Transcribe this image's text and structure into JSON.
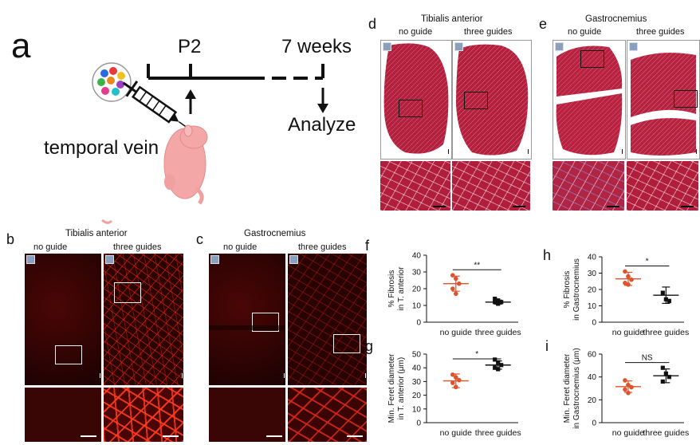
{
  "panel_a": {
    "letter": "a",
    "p2": "P2",
    "weeks": "7 weeks",
    "analyze": "Analyze",
    "temporal_vein": "temporal vein"
  },
  "panel_b": {
    "letter": "b",
    "title": "Tibialis anterior",
    "col1": "no guide",
    "col2": "three guides"
  },
  "panel_c": {
    "letter": "c",
    "title": "Gastrocnemius",
    "col1": "no guide",
    "col2": "three guides"
  },
  "panel_d": {
    "letter": "d",
    "title": "Tibialis anterior",
    "col1": "no guide",
    "col2": "three guides"
  },
  "panel_e": {
    "letter": "e",
    "title": "Gastrocnemius",
    "col1": "no guide",
    "col2": "three guides"
  },
  "colors": {
    "no_guide": "#e0522a",
    "three_guides": "#111111"
  },
  "chart_data": [
    {
      "panel": "f",
      "type": "scatter",
      "ylabel": [
        "% Fibrosis",
        "in T. anterior"
      ],
      "categories": [
        "no guide",
        "three guides"
      ],
      "ylim": [
        0,
        40
      ],
      "yticks": [
        0,
        10,
        20,
        30,
        40
      ],
      "series": [
        {
          "points": [
            28,
            26,
            23,
            20,
            17
          ],
          "mean": 23,
          "sd": 4.5
        },
        {
          "points": [
            14,
            13,
            12,
            12,
            11
          ],
          "mean": 12,
          "sd": 1.2
        }
      ],
      "significance": "**"
    },
    {
      "panel": "g",
      "type": "scatter",
      "ylabel": [
        "Min. Feret diameter",
        "in T. anterior (μm)"
      ],
      "categories": [
        "no guide",
        "three guides"
      ],
      "ylim": [
        0,
        50
      ],
      "yticks": [
        0,
        10,
        20,
        30,
        40,
        50
      ],
      "series": [
        {
          "points": [
            35,
            33,
            31,
            29,
            26
          ],
          "mean": 30.5,
          "sd": 5
        },
        {
          "points": [
            46,
            44,
            42,
            40,
            39
          ],
          "mean": 42,
          "sd": 3
        }
      ],
      "significance": "*"
    },
    {
      "panel": "h",
      "type": "scatter",
      "ylabel": [
        "% Fibrosis",
        "in Gastrocnemius"
      ],
      "categories": [
        "no guide",
        "three guides"
      ],
      "ylim": [
        0,
        40
      ],
      "yticks": [
        0,
        10,
        20,
        30,
        40
      ],
      "series": [
        {
          "points": [
            31,
            28,
            26,
            24,
            23
          ],
          "mean": 26.5,
          "sd": 4
        },
        {
          "points": [
            18,
            14,
            13
          ],
          "mean": 16.5,
          "sd": 5
        }
      ],
      "significance": "*"
    },
    {
      "panel": "i",
      "type": "scatter",
      "ylabel": [
        "Min. Feret diameter",
        "in Gastrocnemius (μm)"
      ],
      "categories": [
        "no guide",
        "three guides"
      ],
      "ylim": [
        0,
        60
      ],
      "yticks": [
        0,
        20,
        40,
        60
      ],
      "series": [
        {
          "points": [
            37,
            33,
            31,
            29,
            26
          ],
          "mean": 31.5,
          "sd": 5
        },
        {
          "points": [
            48,
            43,
            40,
            36
          ],
          "mean": 41,
          "sd": 6
        }
      ],
      "significance": "NS"
    }
  ]
}
